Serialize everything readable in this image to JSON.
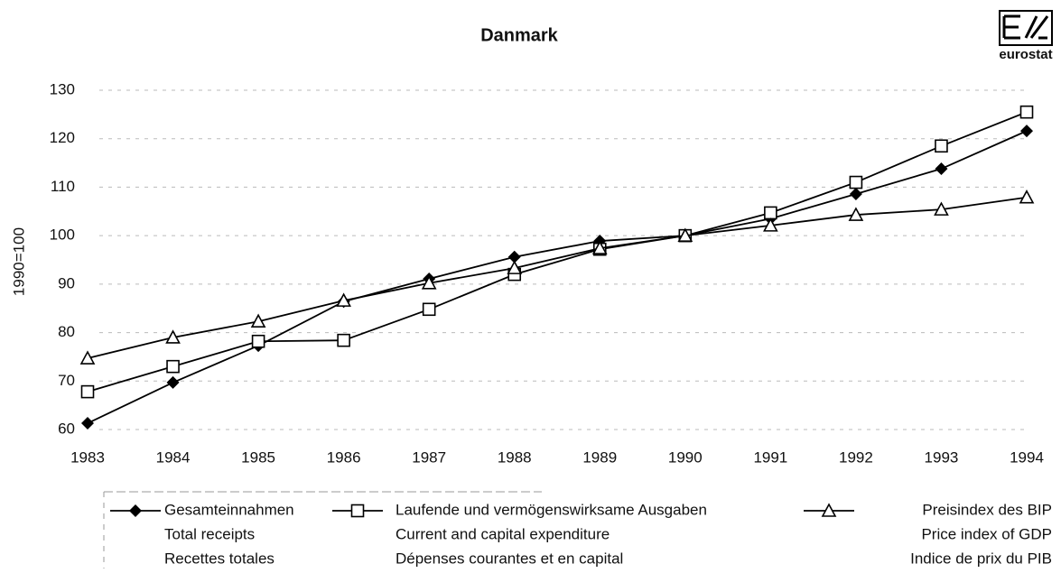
{
  "chart_data": {
    "type": "line",
    "title": "Danmark",
    "y_label": "1990=100",
    "logo": "eurostat",
    "categories": [
      "1983",
      "1984",
      "1985",
      "1986",
      "1987",
      "1988",
      "1989",
      "1990",
      "1991",
      "1992",
      "1993",
      "1994"
    ],
    "ylim": [
      60,
      130
    ],
    "yticks": [
      60,
      70,
      80,
      90,
      100,
      110,
      120,
      130
    ],
    "grid": true,
    "series": [
      {
        "name": "Gesamteinnahmen",
        "translations": [
          "Total receipts",
          "Recettes totales"
        ],
        "color": "#000000",
        "marker": "diamond",
        "values": [
          61.3,
          69.7,
          77.3,
          86.4,
          91.1,
          95.6,
          98.9,
          100,
          103.5,
          108.6,
          113.8,
          121.6
        ]
      },
      {
        "name": "Laufende und vermögenswirksame Ausgaben",
        "translations": [
          "Current and capital expenditure",
          "Dépenses courantes et en capital"
        ],
        "color": "#000000",
        "marker": "square",
        "values": [
          67.8,
          73,
          78.2,
          78.4,
          84.8,
          92,
          97.2,
          100,
          104.7,
          111,
          118.5,
          125.5
        ]
      },
      {
        "name": "Preisindex des BIP",
        "translations": [
          "Price index of GDP",
          "Indice de prix du PIB"
        ],
        "color": "#000000",
        "marker": "triangle",
        "values": [
          74.7,
          79,
          82.3,
          86.6,
          90.2,
          93.3,
          97.4,
          100,
          102.1,
          104.3,
          105.4,
          107.9
        ]
      }
    ]
  }
}
